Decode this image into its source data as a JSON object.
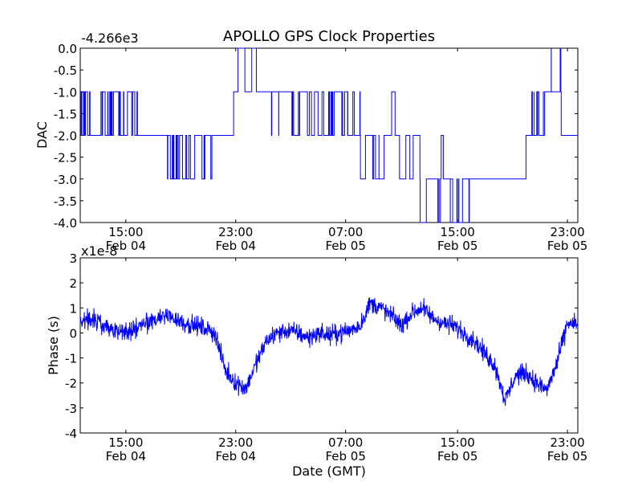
{
  "figure": {
    "title": "APOLLO GPS Clock Properties",
    "xlabel": "Date (GMT)",
    "line_color": "#0000ff"
  },
  "chart_data": [
    {
      "type": "line",
      "ylabel": "DAC",
      "offset_text": "-4.266e3",
      "xlim": [
        0,
        24
      ],
      "ylim": [
        -4.0,
        0.0
      ],
      "yticks": [
        "-4.0",
        "-3.5",
        "-3.0",
        "-2.5",
        "-2.0",
        "-1.5",
        "-1.0",
        "-0.5",
        "0.0"
      ],
      "ytick_values": [
        -4.0,
        -3.5,
        -3.0,
        -2.5,
        -2.0,
        -1.5,
        -1.0,
        -0.5,
        0.0
      ],
      "xticks": [
        {
          "time": "15:00",
          "date": "Feb 04",
          "value": 2.2
        },
        {
          "time": "23:00",
          "date": "Feb 04",
          "value": 7.5
        },
        {
          "time": "07:00",
          "date": "Feb 05",
          "value": 12.8
        },
        {
          "time": "15:00",
          "date": "Feb 05",
          "value": 18.2
        },
        {
          "time": "23:00",
          "date": "Feb 05",
          "value": 23.5
        }
      ],
      "segments": [
        {
          "x": [
            0.0,
            0.25
          ],
          "base": -1.0,
          "alt": [
            -2.0
          ],
          "flips": 10
        },
        {
          "x": [
            0.25,
            1.2
          ],
          "base": -1.0,
          "alt": [
            -2.0
          ],
          "flips": 6
        },
        {
          "x": [
            1.2,
            2.0
          ],
          "base": -2.0,
          "alt": [
            -1.0
          ],
          "flips": 12
        },
        {
          "x": [
            2.0,
            2.9
          ],
          "base": -2.0,
          "alt": [
            -1.0
          ],
          "flips": 8
        },
        {
          "x": [
            2.9,
            4.2
          ],
          "base": -2.0,
          "alt": [],
          "flips": 0
        },
        {
          "x": [
            4.2,
            5.3
          ],
          "base": -2.0,
          "alt": [
            -3.0
          ],
          "flips": 18
        },
        {
          "x": [
            5.3,
            6.4
          ],
          "base": -2.0,
          "alt": [
            -3.0
          ],
          "flips": 8
        },
        {
          "x": [
            6.4,
            7.4
          ],
          "base": -2.0,
          "alt": [],
          "flips": 0
        },
        {
          "x": [
            7.4,
            8.5
          ],
          "base": -1.0,
          "alt": [
            0.0
          ],
          "flips": 4
        },
        {
          "x": [
            8.5,
            9.2
          ],
          "base": -1.0,
          "alt": [],
          "flips": 0
        },
        {
          "x": [
            9.2,
            13.5
          ],
          "base": -1.0,
          "alt": [
            -2.0
          ],
          "flips": 34
        },
        {
          "x": [
            13.5,
            15.4
          ],
          "base": -2.0,
          "alt": [
            -3.0,
            -1.0
          ],
          "flips": 10
        },
        {
          "x": [
            15.4,
            16.8
          ],
          "base": -3.0,
          "alt": [
            -2.0,
            -4.0
          ],
          "flips": 6
        },
        {
          "x": [
            16.8,
            18.8
          ],
          "base": -3.0,
          "alt": [
            -4.0,
            -2.0
          ],
          "flips": 16
        },
        {
          "x": [
            18.8,
            21.5
          ],
          "base": -3.0,
          "alt": [
            -2.0
          ],
          "flips": 0
        },
        {
          "x": [
            21.5,
            22.4
          ],
          "base": -2.0,
          "alt": [
            -1.0
          ],
          "flips": 10
        },
        {
          "x": [
            22.4,
            23.2
          ],
          "base": -1.0,
          "alt": [
            0.0
          ],
          "flips": 4
        },
        {
          "x": [
            23.2,
            24.0
          ],
          "base": -2.0,
          "alt": [],
          "flips": 0
        }
      ]
    },
    {
      "type": "line",
      "ylabel": "Phase (s)",
      "offset_text": "x1e-8",
      "xlim": [
        0,
        24
      ],
      "ylim": [
        -4,
        3
      ],
      "yticks": [
        "-4",
        "-3",
        "-2",
        "-1",
        "0",
        "1",
        "2",
        "3"
      ],
      "ytick_values": [
        -4,
        -3,
        -2,
        -1,
        0,
        1,
        2,
        3
      ],
      "xticks": [
        {
          "time": "15:00",
          "date": "Feb 04",
          "value": 2.2
        },
        {
          "time": "23:00",
          "date": "Feb 04",
          "value": 7.5
        },
        {
          "time": "07:00",
          "date": "Feb 05",
          "value": 12.8
        },
        {
          "time": "15:00",
          "date": "Feb 05",
          "value": 18.2
        },
        {
          "time": "23:00",
          "date": "Feb 05",
          "value": 23.5
        }
      ],
      "trend": {
        "x": [
          0,
          0.5,
          1,
          1.5,
          2,
          2.5,
          3,
          3.5,
          4,
          4.5,
          5,
          5.5,
          6,
          6.5,
          7,
          7.5,
          8,
          8.5,
          9,
          9.5,
          10,
          10.5,
          11,
          11.5,
          12,
          12.5,
          13,
          13.5,
          14,
          14.5,
          15,
          15.5,
          16,
          16.5,
          17,
          17.5,
          18,
          18.5,
          19,
          19.5,
          20,
          20.5,
          21,
          21.5,
          22,
          22.5,
          23,
          23.5,
          24
        ],
        "y": [
          0.5,
          0.6,
          0.4,
          0.2,
          0.0,
          0.1,
          0.3,
          0.5,
          0.7,
          0.6,
          0.4,
          0.3,
          0.2,
          0.0,
          -1.5,
          -2.0,
          -2.2,
          -1.2,
          -0.3,
          0.0,
          0.1,
          0.0,
          -0.2,
          0.0,
          -0.1,
          0.0,
          0.1,
          0.3,
          1.2,
          1.0,
          0.7,
          0.3,
          0.8,
          1.0,
          0.6,
          0.4,
          0.3,
          0.0,
          -0.3,
          -0.8,
          -1.3,
          -2.7,
          -1.7,
          -1.6,
          -2.0,
          -2.3,
          -1.2,
          0.4,
          0.3
        ]
      },
      "noise_amplitude": 0.55
    }
  ]
}
